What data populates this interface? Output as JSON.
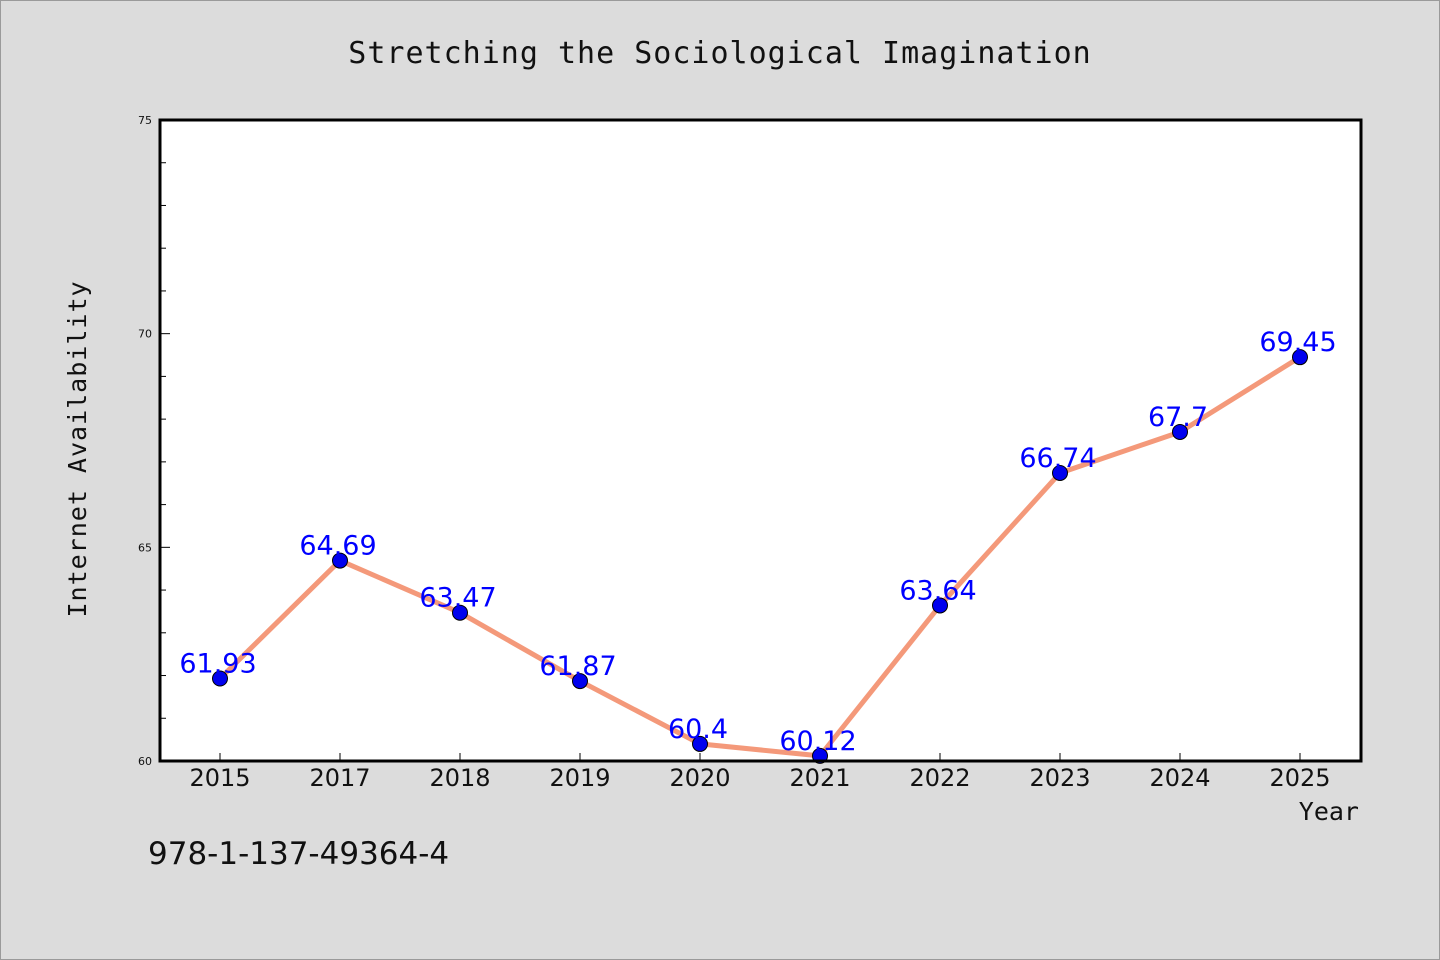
{
  "chart_data": {
    "type": "line",
    "title": "Stretching the Sociological Imagination",
    "xlabel": "Year",
    "ylabel": "Internet Availability",
    "categories": [
      "2015",
      "2017",
      "2018",
      "2019",
      "2020",
      "2021",
      "2022",
      "2023",
      "2024",
      "2025"
    ],
    "series": [
      {
        "values": [
          61.93,
          64.69,
          63.47,
          61.87,
          60.4,
          60.12,
          63.64,
          66.74,
          67.7,
          69.45
        ],
        "labels": [
          "61.93",
          "64.69",
          "63.47",
          "61.87",
          "60.4",
          "60.12",
          "63.64",
          "66.74",
          "67.7",
          "69.45"
        ]
      }
    ],
    "ylim": [
      60,
      75
    ],
    "yticks": [
      "60",
      "65",
      "70",
      "75"
    ],
    "grid": false,
    "line_color": "#f4997a",
    "marker_color": "#0000ee",
    "label_color": "#0000ff"
  },
  "footer": {
    "code": "978-1-137-49364-4"
  }
}
